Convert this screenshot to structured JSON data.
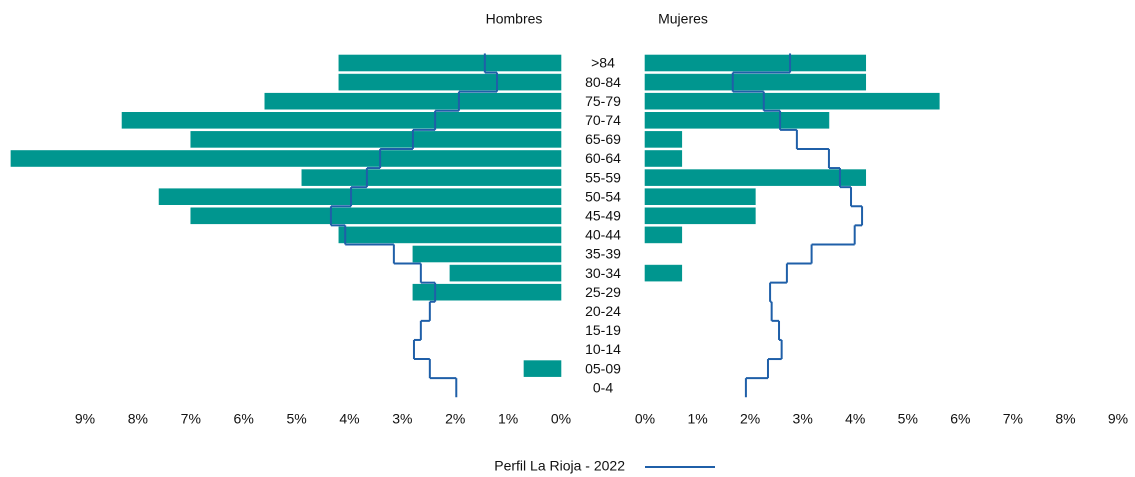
{
  "chart_data": {
    "type": "pyramid",
    "categories": [
      ">84",
      "80-84",
      "75-79",
      "70-74",
      "65-69",
      "60-64",
      "55-59",
      "50-54",
      "45-49",
      "40-44",
      "35-39",
      "30-34",
      "25-29",
      "20-24",
      "15-19",
      "10-14",
      "05-09",
      "0-4"
    ],
    "legend_position": "bottom",
    "line_series": {
      "name": "Perfil La Rioja - 2022",
      "color": "#1f5fa8"
    },
    "panels": [
      {
        "title": "Hombres",
        "direction": "left",
        "color": "#00968f",
        "values": [
          4.2,
          4.2,
          5.6,
          8.3,
          7.0,
          10.4,
          4.9,
          7.6,
          7.0,
          4.2,
          2.8,
          2.1,
          2.8,
          0,
          0,
          0,
          0.7,
          0
        ],
        "line_values": [
          1.44,
          1.21,
          1.93,
          2.38,
          2.8,
          3.42,
          3.67,
          3.97,
          4.35,
          4.08,
          3.16,
          2.65,
          2.38,
          2.48,
          2.65,
          2.78,
          2.48,
          1.98
        ],
        "xlim": [
          0,
          9
        ],
        "xticks": [
          {
            "value": 0,
            "label": "0%"
          },
          {
            "value": 1,
            "label": "1%"
          },
          {
            "value": 2,
            "label": "2%"
          },
          {
            "value": 3,
            "label": "3%"
          },
          {
            "value": 4,
            "label": "4%"
          },
          {
            "value": 5,
            "label": "5%"
          },
          {
            "value": 6,
            "label": "6%"
          },
          {
            "value": 7,
            "label": "7%"
          },
          {
            "value": 8,
            "label": "8%"
          },
          {
            "value": 9,
            "label": "9%"
          }
        ]
      },
      {
        "title": "Mujeres",
        "direction": "right",
        "color": "#00968f",
        "values": [
          4.2,
          4.2,
          5.6,
          3.5,
          0.7,
          0.7,
          4.2,
          2.1,
          2.1,
          0.7,
          0,
          0.7,
          0,
          0,
          0,
          0,
          0,
          0
        ],
        "line_values": [
          2.76,
          1.67,
          2.26,
          2.57,
          2.89,
          3.5,
          3.71,
          3.92,
          4.13,
          3.99,
          3.17,
          2.7,
          2.38,
          2.41,
          2.55,
          2.6,
          2.34,
          1.92
        ],
        "xlim": [
          0,
          9
        ],
        "xticks": [
          {
            "value": 0,
            "label": "0%"
          },
          {
            "value": 1,
            "label": "1%"
          },
          {
            "value": 2,
            "label": "2%"
          },
          {
            "value": 3,
            "label": "3%"
          },
          {
            "value": 4,
            "label": "4%"
          },
          {
            "value": 5,
            "label": "5%"
          },
          {
            "value": 6,
            "label": "6%"
          },
          {
            "value": 7,
            "label": "7%"
          },
          {
            "value": 8,
            "label": "8%"
          },
          {
            "value": 9,
            "label": "9%"
          }
        ]
      }
    ]
  }
}
